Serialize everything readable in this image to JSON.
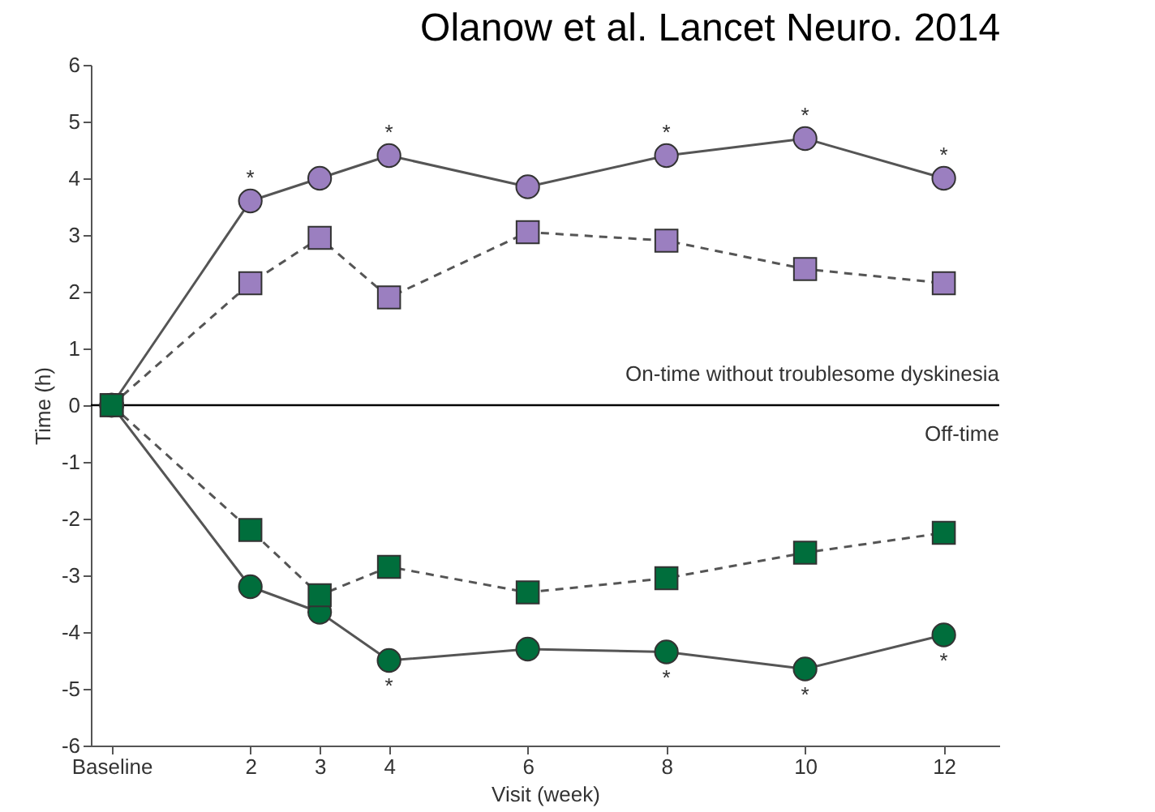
{
  "chart_data": {
    "type": "line",
    "title": "Olanow et al.  Lancet Neuro. 2014",
    "xlabel": "Visit (week)",
    "ylabel": "Time (h)",
    "xlim": [
      -0.3,
      12.8
    ],
    "xticks": [
      {
        "value": 0,
        "label": "Baseline"
      },
      2,
      3,
      4,
      6,
      8,
      10,
      12
    ],
    "ylim": [
      -6,
      6
    ],
    "yticks": [
      -6,
      -5,
      -4,
      -3,
      -2,
      -1,
      0,
      1,
      2,
      3,
      4,
      5,
      6
    ],
    "series": [
      {
        "color": "#9b7fc0",
        "marker": "circle",
        "line_style": "solid",
        "x": [
          0,
          2,
          3,
          4,
          6,
          8,
          10,
          12
        ],
        "values": [
          0,
          3.6,
          4.0,
          4.4,
          3.85,
          4.4,
          4.7,
          4.0
        ]
      },
      {
        "color": "#9b7fc0",
        "marker": "square",
        "line_style": "dashed",
        "x": [
          0,
          2,
          3,
          4,
          6,
          8,
          10,
          12
        ],
        "values": [
          0,
          2.15,
          2.95,
          1.9,
          3.05,
          2.9,
          2.4,
          2.15
        ]
      },
      {
        "color": "#006e3c",
        "marker": "circle",
        "line_style": "solid",
        "x": [
          0,
          2,
          3,
          4,
          6,
          8,
          10,
          12
        ],
        "values": [
          0,
          -3.2,
          -3.65,
          -4.5,
          -4.3,
          -4.35,
          -4.65,
          -4.05
        ]
      },
      {
        "color": "#006e3c",
        "marker": "square",
        "line_style": "dashed",
        "x": [
          0,
          2,
          3,
          4,
          6,
          8,
          10,
          12
        ],
        "values": [
          0,
          -2.2,
          -3.35,
          -2.85,
          -3.3,
          -3.05,
          -2.6,
          -2.25
        ]
      }
    ],
    "ref_lines": [
      {
        "axis": "y",
        "value": 0,
        "color": "#000000"
      }
    ],
    "annotations": [
      "On-time without troublesome dyskinesia",
      "Off-time",
      {
        "text": "*",
        "x": 2,
        "y": 3.6
      },
      {
        "text": "*",
        "x": 4,
        "y": 4.4
      },
      {
        "text": "*",
        "x": 8,
        "y": 4.4
      },
      {
        "text": "*",
        "x": 10,
        "y": 4.7
      },
      {
        "text": "*",
        "x": 12,
        "y": 4.0
      },
      {
        "text": "*",
        "x": 4,
        "y": -4.5
      },
      {
        "text": "*",
        "x": 8,
        "y": -4.35
      },
      {
        "text": "*",
        "x": 10,
        "y": -4.65
      },
      {
        "text": "*",
        "x": 12,
        "y": -4.05
      }
    ],
    "grid": false
  }
}
